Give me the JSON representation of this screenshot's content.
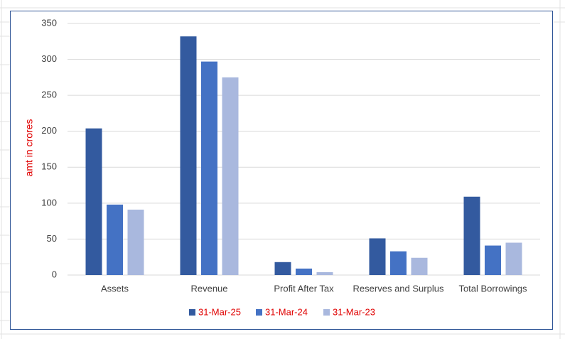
{
  "chart_data": {
    "type": "bar",
    "y_label": "amt in crores",
    "categories": [
      "Assets",
      "Revenue",
      "Profit After Tax",
      "Reserves and Surplus",
      "Total Borrowings"
    ],
    "series": [
      {
        "name": "31-Mar-25",
        "color": "#335a9f",
        "values": [
          204,
          332,
          18,
          51,
          109
        ]
      },
      {
        "name": "31-Mar-24",
        "color": "#4472c4",
        "values": [
          98,
          297,
          9,
          33,
          41
        ]
      },
      {
        "name": "31-Mar-23",
        "color": "#a9b8de",
        "values": [
          91,
          275,
          4,
          24,
          45
        ]
      }
    ],
    "ylim": [
      0,
      350
    ],
    "yticks": [
      0,
      50,
      100,
      150,
      200,
      250,
      300,
      350
    ],
    "grid": true,
    "legend": "bottom"
  }
}
